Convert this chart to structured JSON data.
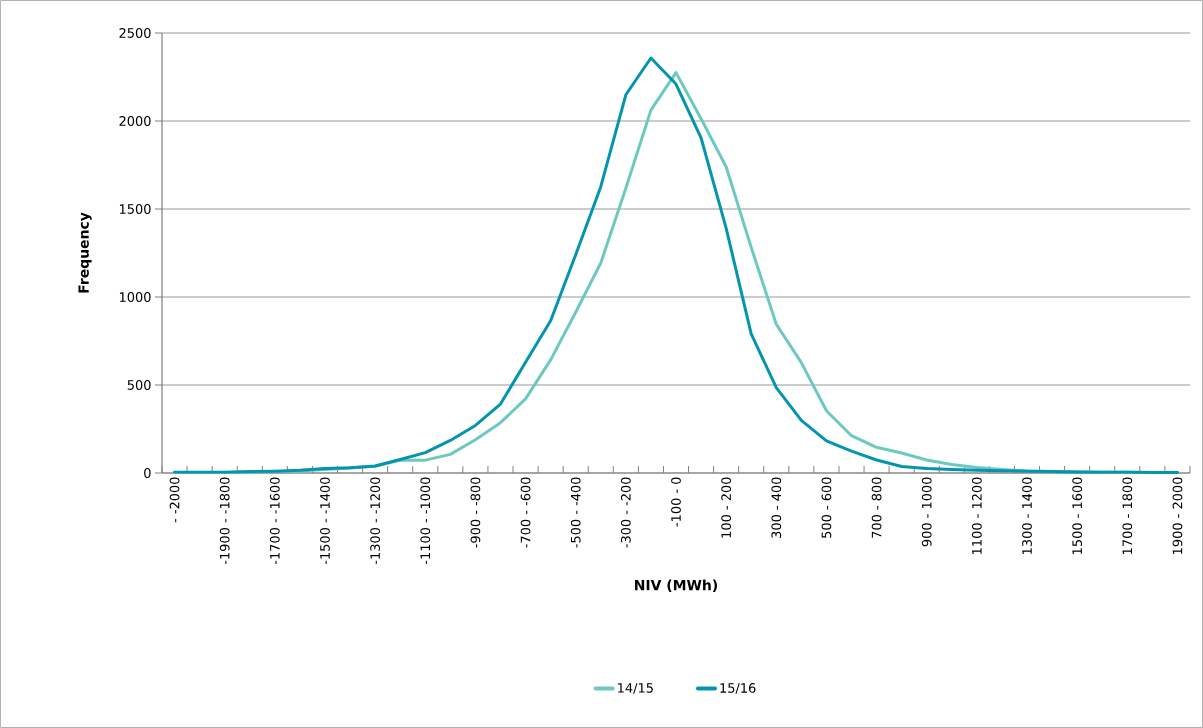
{
  "chart_data": {
    "type": "line",
    "xlabel": "NIV (MWh)",
    "ylabel": "Frequency",
    "categories": [
      "- -2000",
      null,
      "-1900 - -1800",
      null,
      "-1700 - -1600",
      null,
      "-1500 - -1400",
      null,
      "-1300 - -1200",
      null,
      "-1100 - -1000",
      null,
      "-900 - -800",
      null,
      "-700 - -600",
      null,
      "-500 - -400",
      null,
      "-300 - -200",
      null,
      "-100 - 0",
      null,
      "100 - 200",
      null,
      "300 - 400",
      null,
      "500 - 600",
      null,
      "700 - 800",
      null,
      "900 - 1000",
      null,
      "1100 - 1200",
      null,
      "1300 - 1400",
      null,
      "1500 - 1600",
      null,
      "1700 - 1800",
      null,
      "1900 - 2000"
    ],
    "series": [
      {
        "name": "14/15",
        "color": "#6cc9c0",
        "values": [
          3,
          3,
          3,
          5,
          8,
          12,
          20,
          28,
          38,
          73,
          73,
          106,
          189,
          286,
          421,
          643,
          913,
          1193,
          1618,
          2062,
          2275,
          2013,
          1740,
          1282,
          845,
          627,
          354,
          212,
          146,
          114,
          74,
          48,
          31,
          20,
          12,
          8,
          6,
          5,
          4,
          3,
          3
        ]
      },
      {
        "name": "15/16",
        "color": "#0494b0",
        "values": [
          5,
          5,
          5,
          8,
          10,
          15,
          25,
          30,
          40,
          77,
          116,
          185,
          270,
          392,
          629,
          865,
          1240,
          1627,
          2149,
          2358,
          2210,
          1904,
          1391,
          790,
          485,
          299,
          183,
          124,
          74,
          37,
          26,
          20,
          15,
          13,
          10,
          8,
          6,
          5,
          5,
          3,
          3
        ]
      }
    ],
    "ylim": [
      0,
      2500
    ],
    "yticks": [
      0,
      500,
      1000,
      1500,
      2000,
      2500
    ],
    "grid": "y",
    "legend": "bottom"
  }
}
